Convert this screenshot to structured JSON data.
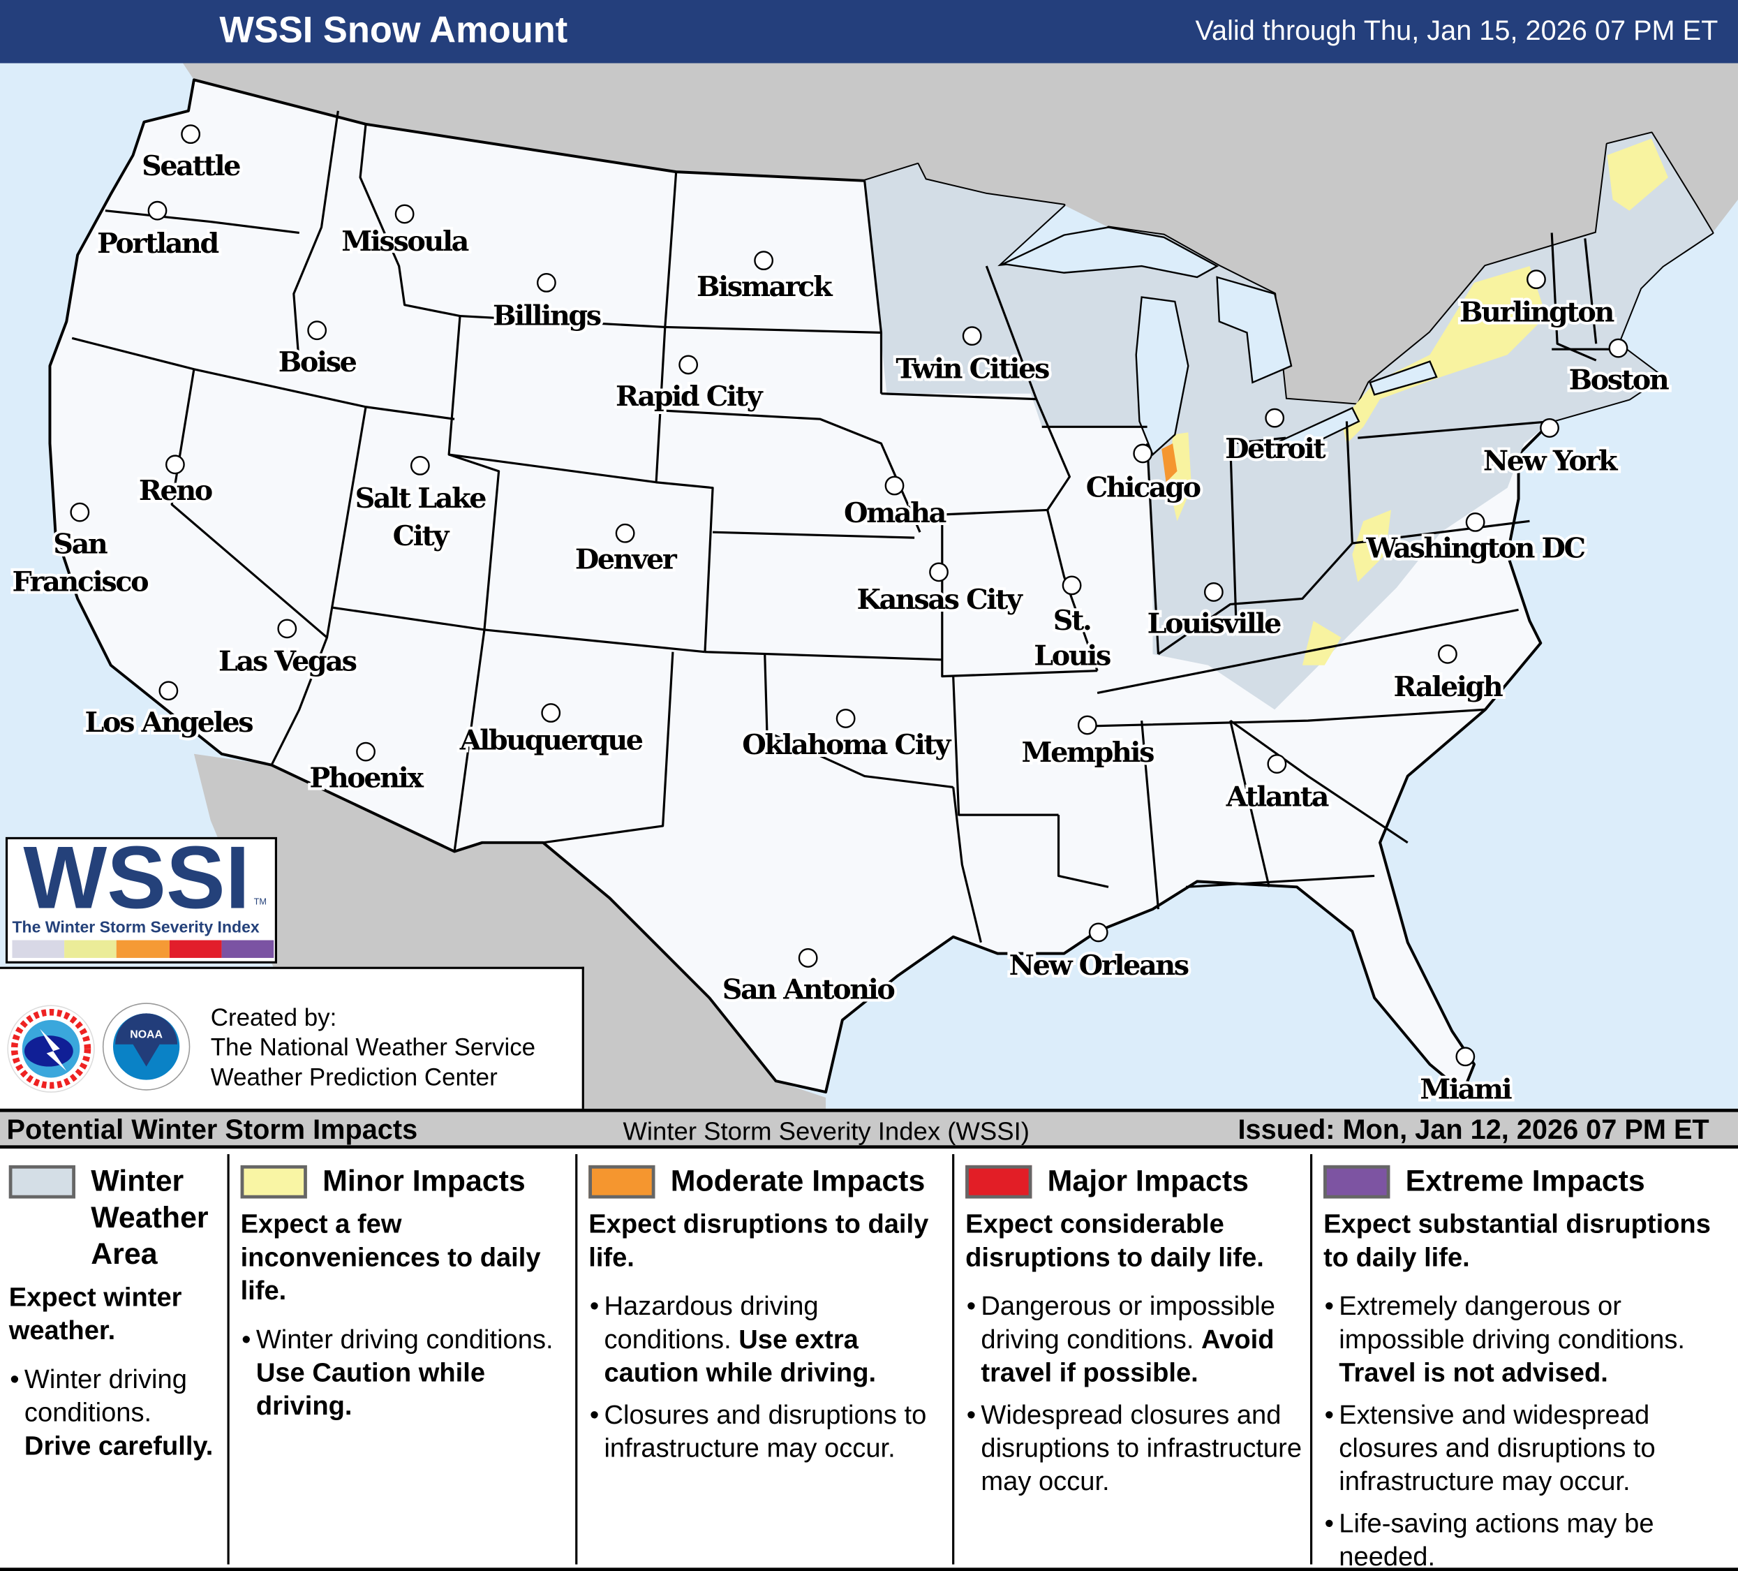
{
  "header": {
    "title": "WSSI Snow Amount",
    "valid": "Valid through Thu, Jan 15, 2026 07 PM ET"
  },
  "map": {
    "colors": {
      "water": "#dcedfa",
      "foreign_land": "#c8c8c8",
      "us_land": "#f7f9fc",
      "winter_weather_area": "#d3dde6",
      "minor": "#f8f3a0",
      "moderate": "#f5962f",
      "major": "#e21e26",
      "extreme": "#7d54a2"
    },
    "cities": [
      {
        "name": "Seattle"
      },
      {
        "name": "Portland"
      },
      {
        "name": "Missoula"
      },
      {
        "name": "Billings"
      },
      {
        "name": "Bismarck"
      },
      {
        "name": "Boise"
      },
      {
        "name": "Rapid City"
      },
      {
        "name": "Twin Cities"
      },
      {
        "name": "Burlington"
      },
      {
        "name": "Boston"
      },
      {
        "name": "Detroit"
      },
      {
        "name": "Chicago"
      },
      {
        "name": "New York"
      },
      {
        "name": "Reno"
      },
      {
        "name": "Salt Lake City"
      },
      {
        "name": "Omaha"
      },
      {
        "name": "San Francisco"
      },
      {
        "name": "Denver"
      },
      {
        "name": "Washington DC"
      },
      {
        "name": "Kansas City"
      },
      {
        "name": "St. Louis"
      },
      {
        "name": "Louisville"
      },
      {
        "name": "Las Vegas"
      },
      {
        "name": "Raleigh"
      },
      {
        "name": "Los Angeles"
      },
      {
        "name": "Albuquerque"
      },
      {
        "name": "Oklahoma City"
      },
      {
        "name": "Memphis"
      },
      {
        "name": "Phoenix"
      },
      {
        "name": "Atlanta"
      },
      {
        "name": "New Orleans"
      },
      {
        "name": "San Antonio"
      },
      {
        "name": "Miami"
      }
    ]
  },
  "wssi_logo": {
    "text": "WSSI",
    "tm": "TM",
    "subtitle": "The Winter Storm Severity Index",
    "bar_colors": [
      "#d8d8e6",
      "#ebec98",
      "#f59a35",
      "#e21e2b",
      "#7b53a3"
    ]
  },
  "credit": {
    "line1": "Created by:",
    "line2": "The National Weather Service",
    "line3": "Weather Prediction Center",
    "nws_logo_text": "NATIONAL WEATHER SERVICE",
    "noaa_logo_text": "NOAA"
  },
  "legend": {
    "title": "Potential Winter Storm Impacts",
    "index_name": "Winter Storm Severity Index (WSSI)",
    "issued": "Issued: Mon, Jan 12, 2026 07 PM ET",
    "categories": [
      {
        "label": "Winter Weather Area",
        "color": "#d4dee6",
        "expect": "Expect winter weather.",
        "bullets": [
          {
            "text": "Winter driving conditions.",
            "bold": "Drive carefully."
          }
        ]
      },
      {
        "label": "Minor Impacts",
        "color": "#f9f5a4",
        "expect": "Expect a few inconveniences to daily life.",
        "bullets": [
          {
            "text": "Winter driving conditions.",
            "bold": "Use Caution while driving."
          }
        ]
      },
      {
        "label": "Moderate Impacts",
        "color": "#f5962f",
        "expect": "Expect disruptions to daily life.",
        "bullets": [
          {
            "text": "Hazardous driving conditions.",
            "bold": "Use extra caution while driving."
          },
          {
            "text": "Closures and disruptions to infrastructure may occur.",
            "bold": ""
          }
        ]
      },
      {
        "label": "Major Impacts",
        "color": "#e21e26",
        "expect": "Expect considerable disruptions to daily life.",
        "bullets": [
          {
            "text": "Dangerous or impossible driving conditions.",
            "bold": "Avoid travel if possible."
          },
          {
            "text": "Widespread closures and disruptions to infrastructure may occur.",
            "bold": ""
          }
        ]
      },
      {
        "label": "Extreme Impacts",
        "color": "#7d54a2",
        "expect": "Expect substantial disruptions to daily life.",
        "bullets": [
          {
            "text": "Extremely dangerous or impossible driving conditions.",
            "bold": "Travel is not advised."
          },
          {
            "text": "Extensive and widespread closures and disruptions to infrastructure may occur.",
            "bold": ""
          },
          {
            "text": "Life-saving actions may be needed.",
            "bold": ""
          }
        ]
      }
    ]
  }
}
